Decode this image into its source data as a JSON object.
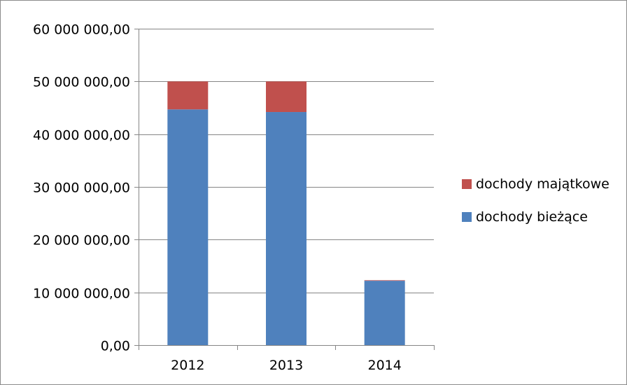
{
  "chart_data": {
    "type": "bar",
    "stacked": true,
    "categories": [
      "2012",
      "2013",
      "2014"
    ],
    "series": [
      {
        "name": "dochody bieżące",
        "values": [
          44700000,
          44200000,
          12200000
        ],
        "color": "#4f81bd"
      },
      {
        "name": "dochody majątkowe",
        "values": [
          5300000,
          5800000,
          100000
        ],
        "color": "#c0504d"
      }
    ],
    "ylim": [
      0,
      60000000
    ],
    "yticks": [
      0,
      10000000,
      20000000,
      30000000,
      40000000,
      50000000,
      60000000
    ],
    "ytick_labels": [
      "0,00",
      "10 000 000,00",
      "20 000 000,00",
      "30 000 000,00",
      "40 000 000,00",
      "50 000 000,00",
      "60 000 000,00"
    ],
    "grid": true,
    "legend": {
      "position": "right",
      "order": [
        "dochody majątkowe",
        "dochody bieżące"
      ]
    }
  }
}
